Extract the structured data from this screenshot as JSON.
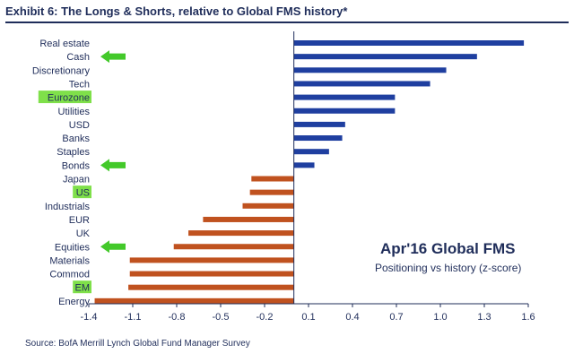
{
  "header": {
    "title": "Exhibit 6: The Longs & Shorts, relative to Global FMS history*"
  },
  "footer": {
    "source": "Source: BofA Merrill Lynch Global Fund Manager Survey"
  },
  "annotation": {
    "line1": "Apr'16 Global FMS",
    "line2": "Positioning vs history (z-score)"
  },
  "colors": {
    "positive": "#1f3fa0",
    "negative": "#c0521f",
    "highlight": "#7fe04a",
    "arrow": "#43c92a",
    "text": "#1f2d5a"
  },
  "chart_data": {
    "type": "bar",
    "orientation": "horizontal",
    "title": "Exhibit 6: The Longs & Shorts, relative to Global FMS history*",
    "xlabel": "",
    "ylabel": "",
    "xlim": [
      -1.4,
      1.6
    ],
    "xticks": [
      -1.4,
      -1.1,
      -0.8,
      -0.5,
      -0.2,
      0.1,
      0.4,
      0.7,
      1.0,
      1.3,
      1.6
    ],
    "xtick_labels": [
      "-1.4",
      "-1.1",
      "-0.8",
      "-0.5",
      "-0.2",
      "0.1",
      "0.4",
      "0.7",
      "1.0",
      "1.3",
      "1.6"
    ],
    "categories": [
      "Real estate",
      "Cash",
      "Discretionary",
      "Tech",
      "Eurozone",
      "Utilities",
      "USD",
      "Banks",
      "Staples",
      "Bonds",
      "Japan",
      "US",
      "Industrials",
      "EUR",
      "UK",
      "Equities",
      "Materials",
      "Commod",
      "EM",
      "Energy"
    ],
    "values": [
      1.57,
      1.25,
      1.04,
      0.93,
      0.69,
      0.69,
      0.35,
      0.33,
      0.24,
      0.14,
      -0.29,
      -0.3,
      -0.35,
      -0.62,
      -0.72,
      -0.82,
      -1.12,
      -1.12,
      -1.13,
      -1.36
    ],
    "highlighted": [
      "Eurozone",
      "US",
      "EM"
    ],
    "arrows": [
      "Cash",
      "Bonds",
      "Equities"
    ],
    "grid": false
  }
}
